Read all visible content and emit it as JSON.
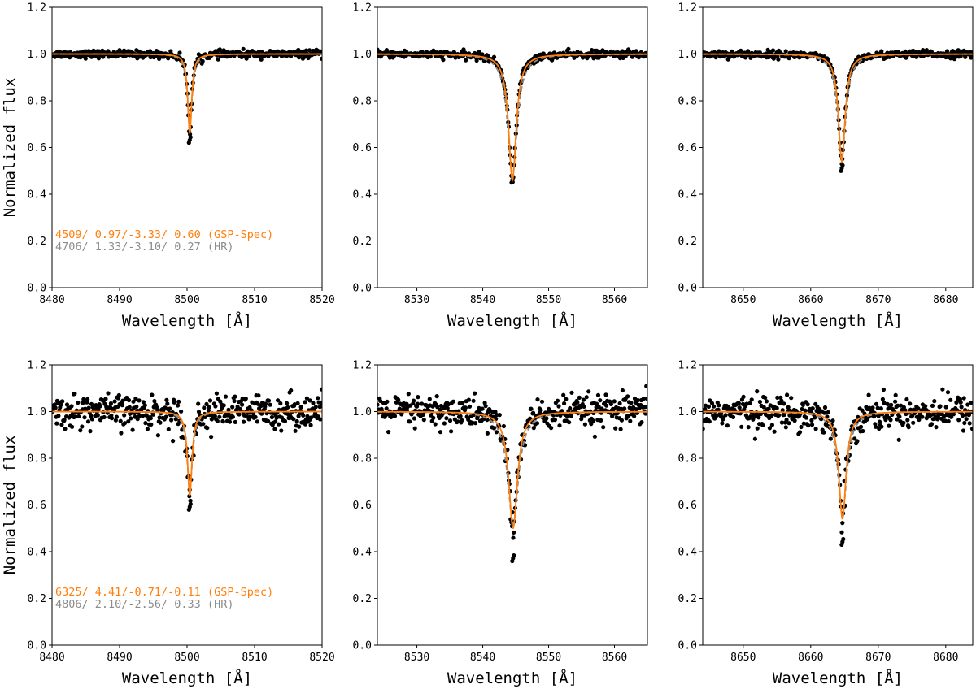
{
  "colors": {
    "model_gsp": "#ff7f0e",
    "model_hr": "#8c8c8c",
    "observed": "#000000",
    "axes": "#000000"
  },
  "chart_data": [
    {
      "type": "scatter",
      "row": 1,
      "col": 1,
      "xlim": [
        8480,
        8520
      ],
      "ylim": [
        0.0,
        1.2
      ],
      "xticks": [
        "8480",
        "8490",
        "8500",
        "8510",
        "8520"
      ],
      "yticks": [
        "0.0",
        "0.2",
        "0.4",
        "0.6",
        "0.8",
        "1.0",
        "1.2"
      ],
      "xlabel": "Wavelength [Å]",
      "ylabel": "Normalized flux",
      "line_center": 8500.4,
      "line_depth": 0.34,
      "line_width": 0.35,
      "hr_depth": 0.31,
      "noise": 0.008,
      "obs_min": 0.62,
      "annotations": [
        {
          "text": "4509/ 0.97/-3.33/ 0.60 (GSP-Spec)",
          "color": "#ff7f0e"
        },
        {
          "text": "4706/ 1.33/-3.10/ 0.27 (HR)",
          "color": "#8c8c8c"
        }
      ]
    },
    {
      "type": "scatter",
      "row": 1,
      "col": 2,
      "xlim": [
        8524,
        8565
      ],
      "ylim": [
        0.0,
        1.2
      ],
      "xticks": [
        "8530",
        "8540",
        "8550",
        "8560"
      ],
      "yticks": [
        "0.0",
        "0.2",
        "0.4",
        "0.6",
        "0.8",
        "1.0",
        "1.2"
      ],
      "xlabel": "Wavelength [Å]",
      "ylabel": "",
      "line_center": 8544.5,
      "line_depth": 0.54,
      "line_width": 0.7,
      "hr_depth": 0.52,
      "noise": 0.008,
      "obs_min": 0.45,
      "annotations": []
    },
    {
      "type": "scatter",
      "row": 1,
      "col": 3,
      "xlim": [
        8644,
        8684
      ],
      "ylim": [
        0.0,
        1.2
      ],
      "xticks": [
        "8650",
        "8660",
        "8670",
        "8680"
      ],
      "yticks": [
        "0.0",
        "0.2",
        "0.4",
        "0.6",
        "0.8",
        "1.0",
        "1.2"
      ],
      "xlabel": "Wavelength [Å]",
      "ylabel": "",
      "line_center": 8664.6,
      "line_depth": 0.46,
      "line_width": 0.6,
      "hr_depth": 0.44,
      "noise": 0.008,
      "obs_min": 0.5,
      "annotations": []
    },
    {
      "type": "scatter",
      "row": 2,
      "col": 1,
      "xlim": [
        8480,
        8520
      ],
      "ylim": [
        0.0,
        1.2
      ],
      "xticks": [
        "8480",
        "8490",
        "8500",
        "8510",
        "8520"
      ],
      "yticks": [
        "0.0",
        "0.2",
        "0.4",
        "0.6",
        "0.8",
        "1.0",
        "1.2"
      ],
      "xlabel": "Wavelength [Å]",
      "ylabel": "Normalized flux",
      "line_center": 8500.4,
      "line_depth": 0.36,
      "line_width": 0.4,
      "hr_depth": 0.33,
      "noise": 0.035,
      "obs_min": 0.58,
      "annotations": [
        {
          "text": "6325/ 4.41/-0.71/-0.11 (GSP-Spec)",
          "color": "#ff7f0e"
        },
        {
          "text": "4806/ 2.10/-2.56/ 0.33 (HR)",
          "color": "#8c8c8c"
        }
      ]
    },
    {
      "type": "scatter",
      "row": 2,
      "col": 2,
      "xlim": [
        8524,
        8565
      ],
      "ylim": [
        0.0,
        1.2
      ],
      "xticks": [
        "8530",
        "8540",
        "8550",
        "8560"
      ],
      "yticks": [
        "0.0",
        "0.2",
        "0.4",
        "0.6",
        "0.8",
        "1.0",
        "1.2"
      ],
      "xlabel": "Wavelength [Å]",
      "ylabel": "",
      "line_center": 8544.6,
      "line_depth": 0.5,
      "line_width": 0.8,
      "hr_depth": 0.48,
      "noise": 0.035,
      "obs_min": 0.36,
      "annotations": []
    },
    {
      "type": "scatter",
      "row": 2,
      "col": 3,
      "xlim": [
        8644,
        8684
      ],
      "ylim": [
        0.0,
        1.2
      ],
      "xticks": [
        "8650",
        "8660",
        "8670",
        "8680"
      ],
      "yticks": [
        "0.0",
        "0.2",
        "0.4",
        "0.6",
        "0.8",
        "1.0",
        "1.2"
      ],
      "xlabel": "Wavelength [Å]",
      "ylabel": "",
      "line_center": 8664.7,
      "line_depth": 0.46,
      "line_width": 0.65,
      "hr_depth": 0.44,
      "noise": 0.035,
      "obs_min": 0.43,
      "annotations": []
    }
  ]
}
